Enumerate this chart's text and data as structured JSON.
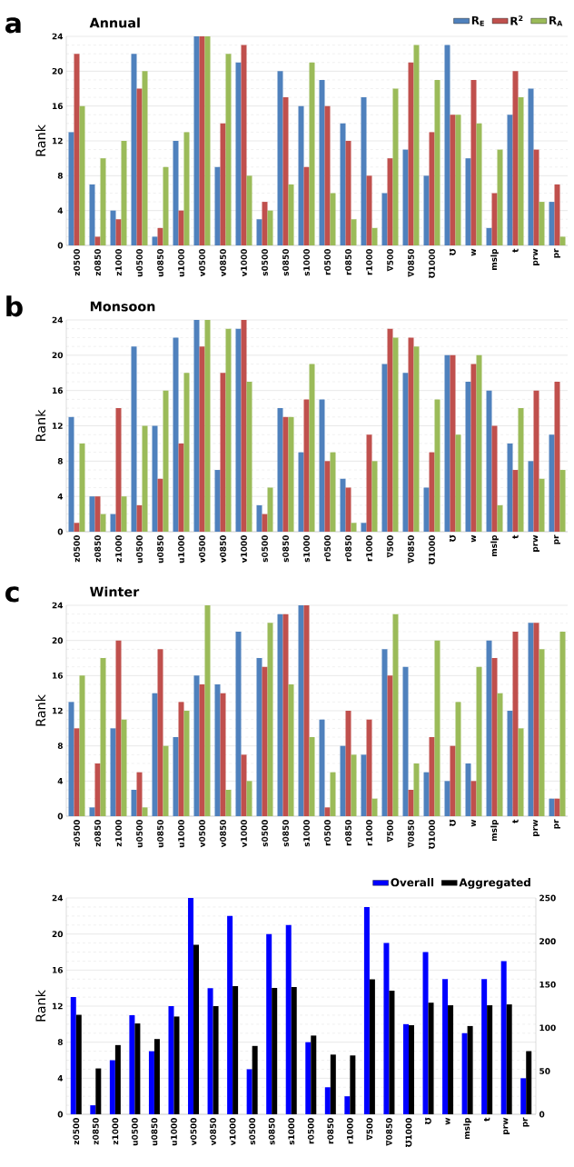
{
  "chart_data": [
    {
      "type": "bar",
      "title": "Annual",
      "ylabel": "Rank",
      "annotations": [
        "a"
      ],
      "categories": [
        "z0500",
        "z0850",
        "z1000",
        "u0500",
        "u0850",
        "u1000",
        "v0500",
        "v0850",
        "v1000",
        "s0500",
        "s0850",
        "s1000",
        "r0500",
        "r0850",
        "r1000",
        "∇500",
        "∇0850",
        "Ʊ1000",
        "Ʊ",
        "w",
        "mslp",
        "t",
        "prw",
        "pr"
      ],
      "ylim": [
        0,
        24
      ],
      "yticks": [
        0,
        4,
        8,
        12,
        16,
        20,
        24
      ],
      "grid": "y",
      "legend": "top right",
      "series": [
        {
          "name": "R$_{E}$",
          "color": "#4f81bd",
          "values": [
            13,
            7,
            4,
            22,
            1,
            12,
            24,
            9,
            21,
            3,
            20,
            16,
            19,
            14,
            17,
            6,
            11,
            8,
            23,
            10,
            2,
            15,
            18,
            5
          ]
        },
        {
          "name": "R$^{2}$",
          "color": "#c0504d",
          "values": [
            22,
            1,
            3,
            18,
            2,
            4,
            24,
            14,
            23,
            5,
            17,
            9,
            16,
            12,
            8,
            10,
            21,
            13,
            15,
            19,
            6,
            20,
            11,
            7
          ]
        },
        {
          "name": "R$_{A}$",
          "color": "#9bbb59",
          "values": [
            16,
            10,
            12,
            20,
            9,
            13,
            24,
            22,
            8,
            4,
            7,
            21,
            6,
            3,
            2,
            18,
            23,
            19,
            15,
            14,
            11,
            17,
            5,
            1
          ]
        }
      ]
    },
    {
      "type": "bar",
      "title": "Monsoon",
      "ylabel": "Rank",
      "annotations": [
        "b"
      ],
      "categories": [
        "z0500",
        "z0850",
        "z1000",
        "u0500",
        "u0850",
        "u1000",
        "v0500",
        "v0850",
        "v1000",
        "s0500",
        "s0850",
        "s1000",
        "r0500",
        "r0850",
        "r1000",
        "∇500",
        "∇0850",
        "Ʊ1000",
        "Ʊ",
        "w",
        "mslp",
        "t",
        "prw",
        "pr"
      ],
      "ylim": [
        0,
        24
      ],
      "yticks": [
        0,
        4,
        8,
        12,
        16,
        20,
        24
      ],
      "grid": "y",
      "series": [
        {
          "color": "#4f81bd",
          "values": [
            13,
            4,
            2,
            21,
            12,
            22,
            24,
            7,
            23,
            3,
            14,
            9,
            15,
            6,
            1,
            19,
            18,
            5,
            20,
            17,
            16,
            10,
            8,
            11
          ]
        },
        {
          "color": "#c0504d",
          "values": [
            1,
            4,
            14,
            3,
            6,
            10,
            21,
            18,
            24,
            2,
            13,
            15,
            8,
            5,
            11,
            23,
            22,
            9,
            20,
            19,
            12,
            7,
            16,
            17
          ]
        },
        {
          "color": "#9bbb59",
          "values": [
            10,
            2,
            4,
            12,
            16,
            18,
            24,
            23,
            17,
            5,
            13,
            19,
            9,
            1,
            8,
            22,
            21,
            15,
            11,
            20,
            3,
            14,
            6,
            7
          ]
        }
      ]
    },
    {
      "type": "bar",
      "title": "Winter",
      "ylabel": "Rank",
      "annotations": [
        "c"
      ],
      "categories": [
        "z0500",
        "z0850",
        "z1000",
        "u0500",
        "u0850",
        "u1000",
        "v0500",
        "v0850",
        "v1000",
        "s0500",
        "s0850",
        "s1000",
        "r0500",
        "r0850",
        "r1000",
        "∇500",
        "∇0850",
        "Ʊ1000",
        "Ʊ",
        "w",
        "mslp",
        "t",
        "prw",
        "pr"
      ],
      "ylim": [
        0,
        24
      ],
      "yticks": [
        0,
        4,
        8,
        12,
        16,
        20,
        24
      ],
      "grid": "y",
      "series": [
        {
          "color": "#4f81bd",
          "values": [
            13,
            1,
            10,
            3,
            14,
            9,
            16,
            15,
            21,
            18,
            23,
            24,
            11,
            8,
            7,
            19,
            17,
            5,
            4,
            6,
            20,
            12,
            22,
            2
          ]
        },
        {
          "color": "#c0504d",
          "values": [
            10,
            6,
            20,
            5,
            19,
            13,
            15,
            14,
            7,
            17,
            23,
            24,
            1,
            12,
            11,
            16,
            3,
            9,
            8,
            4,
            18,
            21,
            22,
            2
          ]
        },
        {
          "color": "#9bbb59",
          "values": [
            16,
            18,
            11,
            1,
            8,
            12,
            24,
            3,
            4,
            22,
            15,
            9,
            5,
            7,
            2,
            23,
            6,
            20,
            13,
            17,
            14,
            10,
            19,
            21
          ]
        }
      ]
    },
    {
      "type": "bar",
      "ylabel": "Rank",
      "categories": [
        "z0500",
        "z0850",
        "z1000",
        "u0500",
        "u0850",
        "u1000",
        "v0500",
        "v0850",
        "v1000",
        "s0500",
        "s0850",
        "s1000",
        "r0500",
        "r0850",
        "r1000",
        "∇500",
        "∇0850",
        "Ʊ1000",
        "Ʊ",
        "w",
        "mslp",
        "t",
        "prw",
        "pr"
      ],
      "ylim": [
        0,
        24
      ],
      "yticks": [
        0,
        4,
        8,
        12,
        16,
        20,
        24
      ],
      "y2lim": [
        0,
        250
      ],
      "y2ticks": [
        0,
        50,
        100,
        150,
        200,
        250
      ],
      "grid": "y",
      "legend": "top right",
      "series": [
        {
          "name": "Overall",
          "color": "#0000ff",
          "values": [
            13,
            1,
            6,
            11,
            7,
            12,
            24,
            14,
            22,
            5,
            20,
            21,
            8,
            3,
            2,
            23,
            19,
            10,
            18,
            15,
            9,
            15,
            17,
            4
          ]
        },
        {
          "name": "Aggregated",
          "color": "#000000",
          "axis": "y2",
          "values": [
            115,
            53,
            80,
            105,
            87,
            113,
            196,
            125,
            148,
            79,
            146,
            147,
            91,
            69,
            68,
            156,
            143,
            103,
            129,
            126,
            102,
            126,
            127,
            73
          ]
        }
      ]
    }
  ]
}
